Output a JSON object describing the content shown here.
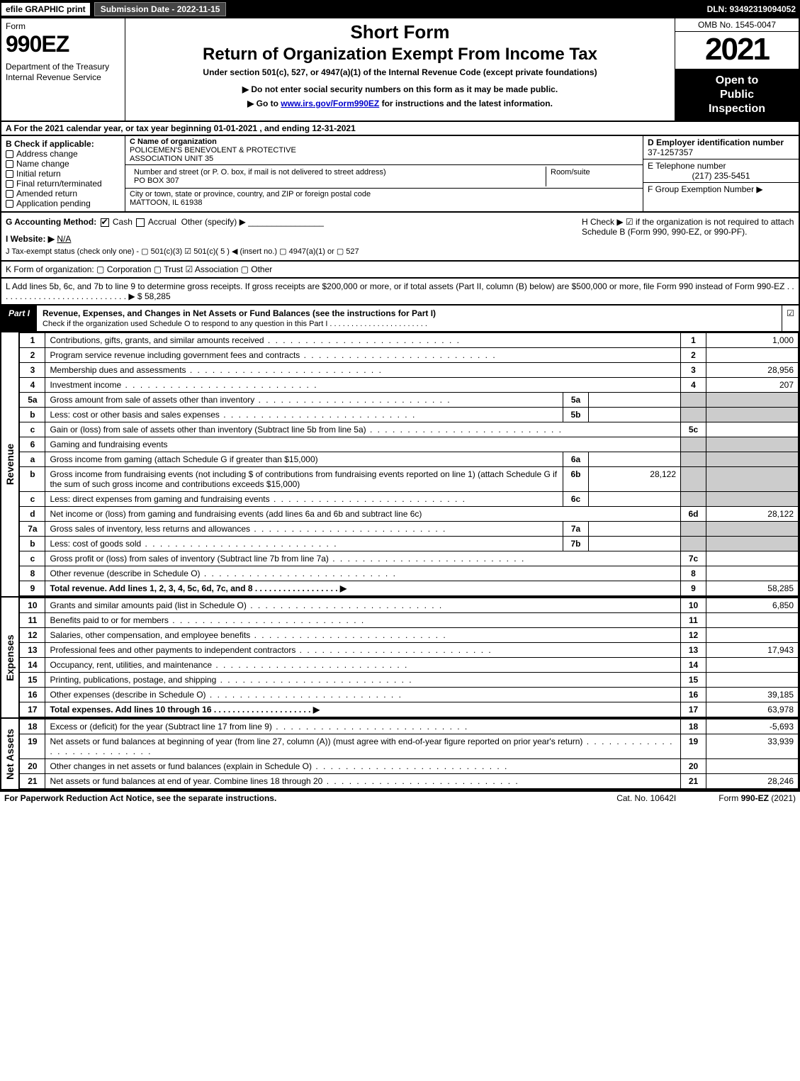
{
  "topbar": {
    "efile": "efile GRAPHIC print",
    "submission": "Submission Date - 2022-11-15",
    "dln": "DLN: 93492319094052"
  },
  "header": {
    "form_word": "Form",
    "form_no": "990EZ",
    "dept": "Department of the Treasury\nInternal Revenue Service",
    "short": "Short Form",
    "ret": "Return of Organization Exempt From Income Tax",
    "under": "Under section 501(c), 527, or 4947(a)(1) of the Internal Revenue Code (except private foundations)",
    "note1": "▶ Do not enter social security numbers on this form as it may be made public.",
    "note2_pre": "▶ Go to ",
    "note2_link": "www.irs.gov/Form990EZ",
    "note2_post": " for instructions and the latest information.",
    "omb": "OMB No. 1545-0047",
    "year": "2021",
    "open": "Open to\nPublic\nInspection"
  },
  "A": "A  For the 2021 calendar year, or tax year beginning 01-01-2021 , and ending 12-31-2021",
  "B": {
    "label": "B  Check if applicable:",
    "items": [
      "Address change",
      "Name change",
      "Initial return",
      "Final return/terminated",
      "Amended return",
      "Application pending"
    ]
  },
  "C": {
    "hd": "C Name of organization",
    "name": "POLICEMEN'S BENEVOLENT & PROTECTIVE\nASSOCIATION UNIT 35",
    "street_hd": "Number and street (or P. O. box, if mail is not delivered to street address)",
    "room_hd": "Room/suite",
    "street": "PO BOX 307",
    "city_hd": "City or town, state or province, country, and ZIP or foreign postal code",
    "city": "MATTOON, IL  61938"
  },
  "D": {
    "hd": "D Employer identification number",
    "val": "37-1257357"
  },
  "E": {
    "hd": "E Telephone number",
    "val": "(217) 235-5451"
  },
  "F": {
    "hd": "F Group Exemption Number   ▶",
    "val": ""
  },
  "G": {
    "label": "G Accounting Method:",
    "cash": "Cash",
    "accrual": "Accrual",
    "other": "Other (specify) ▶"
  },
  "H": "H   Check ▶  ☑  if the organization is not required to attach Schedule B (Form 990, 990-EZ, or 990-PF).",
  "I": {
    "label": "I Website: ▶",
    "val": "N/A"
  },
  "J": "J Tax-exempt status (check only one) -  ▢ 501(c)(3)  ☑ 501(c)( 5 ) ◀ (insert no.)  ▢ 4947(a)(1) or  ▢ 527",
  "K": "K Form of organization:  ▢ Corporation  ▢ Trust  ☑ Association  ▢ Other",
  "L": {
    "text": "L Add lines 5b, 6c, and 7b to line 9 to determine gross receipts. If gross receipts are $200,000 or more, or if total assets (Part II, column (B) below) are $500,000 or more, file Form 990 instead of Form 990-EZ . . . . . . . . . . . . . . . . . . . . . . . . . . . . ▶ $",
    "val": "58,285"
  },
  "part1": {
    "tab": "Part I",
    "title": "Revenue, Expenses, and Changes in Net Assets or Fund Balances (see the instructions for Part I)",
    "sub": "Check if the organization used Schedule O to respond to any question in this Part I . . . . . . . . . . . . . . . . . . . . . . ."
  },
  "revenue_rows": [
    {
      "n": "1",
      "txt": "Contributions, gifts, grants, and similar amounts received",
      "ln": "1",
      "amt": "1,000"
    },
    {
      "n": "2",
      "txt": "Program service revenue including government fees and contracts",
      "ln": "2",
      "amt": ""
    },
    {
      "n": "3",
      "txt": "Membership dues and assessments",
      "ln": "3",
      "amt": "28,956"
    },
    {
      "n": "4",
      "txt": "Investment income",
      "ln": "4",
      "amt": "207"
    }
  ],
  "rev5a": {
    "n": "5a",
    "txt": "Gross amount from sale of assets other than inventory",
    "mid": "5a",
    "midamt": ""
  },
  "rev5b": {
    "n": "b",
    "txt": "Less: cost or other basis and sales expenses",
    "mid": "5b",
    "midamt": ""
  },
  "rev5c": {
    "n": "c",
    "txt": "Gain or (loss) from sale of assets other than inventory (Subtract line 5b from line 5a)",
    "ln": "5c",
    "amt": ""
  },
  "rev6": {
    "n": "6",
    "txt": "Gaming and fundraising events"
  },
  "rev6a": {
    "n": "a",
    "txt": "Gross income from gaming (attach Schedule G if greater than $15,000)",
    "mid": "6a",
    "midamt": ""
  },
  "rev6b": {
    "n": "b",
    "txt": "Gross income from fundraising events (not including $                    of contributions from fundraising events reported on line 1) (attach Schedule G if the sum of such gross income and contributions exceeds $15,000)",
    "mid": "6b",
    "midamt": "28,122"
  },
  "rev6c": {
    "n": "c",
    "txt": "Less: direct expenses from gaming and fundraising events",
    "mid": "6c",
    "midamt": ""
  },
  "rev6d": {
    "n": "d",
    "txt": "Net income or (loss) from gaming and fundraising events (add lines 6a and 6b and subtract line 6c)",
    "ln": "6d",
    "amt": "28,122"
  },
  "rev7a": {
    "n": "7a",
    "txt": "Gross sales of inventory, less returns and allowances",
    "mid": "7a",
    "midamt": ""
  },
  "rev7b": {
    "n": "b",
    "txt": "Less: cost of goods sold",
    "mid": "7b",
    "midamt": ""
  },
  "rev7c": {
    "n": "c",
    "txt": "Gross profit or (loss) from sales of inventory (Subtract line 7b from line 7a)",
    "ln": "7c",
    "amt": ""
  },
  "rev8": {
    "n": "8",
    "txt": "Other revenue (describe in Schedule O)",
    "ln": "8",
    "amt": ""
  },
  "rev9": {
    "n": "9",
    "txt": "Total revenue. Add lines 1, 2, 3, 4, 5c, 6d, 7c, and 8   . . . . . . . . . . . . . . . . . .  ▶",
    "ln": "9",
    "amt": "58,285",
    "bold": true
  },
  "expense_rows": [
    {
      "n": "10",
      "txt": "Grants and similar amounts paid (list in Schedule O)",
      "ln": "10",
      "amt": "6,850"
    },
    {
      "n": "11",
      "txt": "Benefits paid to or for members",
      "ln": "11",
      "amt": ""
    },
    {
      "n": "12",
      "txt": "Salaries, other compensation, and employee benefits",
      "ln": "12",
      "amt": ""
    },
    {
      "n": "13",
      "txt": "Professional fees and other payments to independent contractors",
      "ln": "13",
      "amt": "17,943"
    },
    {
      "n": "14",
      "txt": "Occupancy, rent, utilities, and maintenance",
      "ln": "14",
      "amt": ""
    },
    {
      "n": "15",
      "txt": "Printing, publications, postage, and shipping",
      "ln": "15",
      "amt": ""
    },
    {
      "n": "16",
      "txt": "Other expenses (describe in Schedule O)",
      "ln": "16",
      "amt": "39,185"
    },
    {
      "n": "17",
      "txt": "Total expenses. Add lines 10 through 16    . . . . . . . . . . . . . . . . . . . . .  ▶",
      "ln": "17",
      "amt": "63,978",
      "bold": true
    }
  ],
  "net_rows": [
    {
      "n": "18",
      "txt": "Excess or (deficit) for the year (Subtract line 17 from line 9)",
      "ln": "18",
      "amt": "-5,693"
    },
    {
      "n": "19",
      "txt": "Net assets or fund balances at beginning of year (from line 27, column (A)) (must agree with end-of-year figure reported on prior year's return)",
      "ln": "19",
      "amt": "33,939"
    },
    {
      "n": "20",
      "txt": "Other changes in net assets or fund balances (explain in Schedule O)",
      "ln": "20",
      "amt": ""
    },
    {
      "n": "21",
      "txt": "Net assets or fund balances at end of year. Combine lines 18 through 20",
      "ln": "21",
      "amt": "28,246"
    }
  ],
  "sidelabels": {
    "rev": "Revenue",
    "exp": "Expenses",
    "net": "Net Assets"
  },
  "footer": {
    "f1": "For Paperwork Reduction Act Notice, see the separate instructions.",
    "f2": "Cat. No. 10642I",
    "f3": "Form 990-EZ (2021)"
  },
  "colors": {
    "black": "#000000",
    "grey": "#cccccc",
    "link": "#0000cc"
  }
}
